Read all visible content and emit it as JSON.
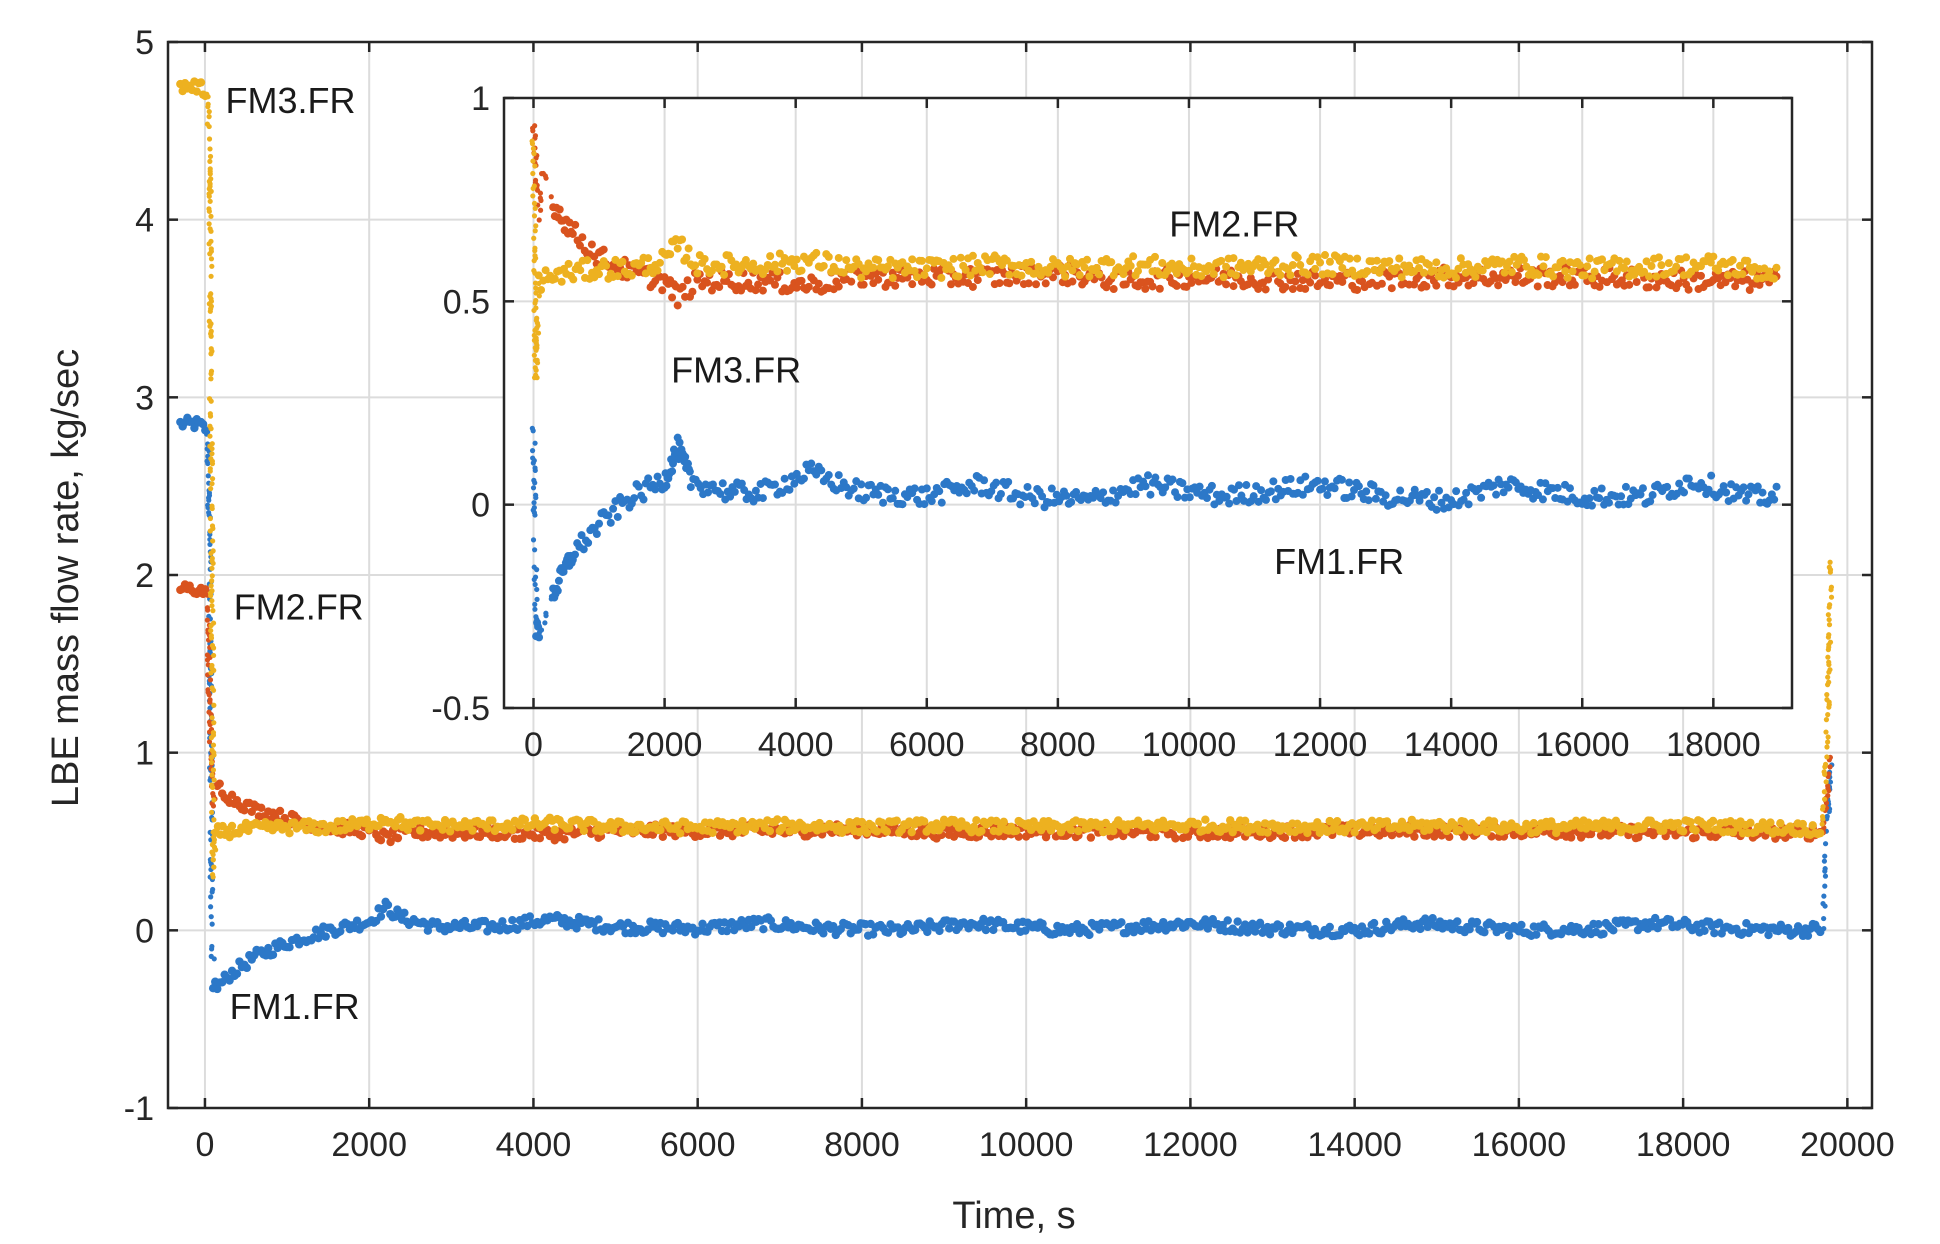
{
  "chart_data": [
    {
      "type": "scatter",
      "title": "",
      "xlabel": "Time, s",
      "ylabel": "LBE mass flow rate, kg/sec",
      "xlim": [
        -450,
        20300
      ],
      "ylim": [
        -1,
        5
      ],
      "xticks": [
        0,
        2000,
        4000,
        6000,
        8000,
        10000,
        12000,
        14000,
        16000,
        18000,
        20000
      ],
      "yticks": [
        -1,
        0,
        1,
        2,
        3,
        4,
        5
      ],
      "grid": true,
      "legend": "none (series labeled directly on plot)",
      "series": [
        {
          "name": "FM1.FR",
          "color": "#2c78c8",
          "points": [
            [
              -300,
              2.85
            ],
            [
              -100,
              2.85
            ],
            [
              30,
              2.82
            ],
            [
              60,
              2.2
            ],
            [
              80,
              0.3
            ],
            [
              100,
              -0.3
            ],
            [
              150,
              -0.32
            ],
            [
              300,
              -0.25
            ],
            [
              600,
              -0.15
            ],
            [
              1000,
              -0.07
            ],
            [
              1500,
              0.0
            ],
            [
              2000,
              0.05
            ],
            [
              2200,
              0.13
            ],
            [
              2400,
              0.07
            ],
            [
              2800,
              0.02
            ],
            [
              3500,
              0.02
            ],
            [
              4200,
              0.06
            ],
            [
              5000,
              0.02
            ],
            [
              6000,
              0.01
            ],
            [
              6800,
              0.04
            ],
            [
              7500,
              0.01
            ],
            [
              8500,
              0.0
            ],
            [
              9300,
              0.04
            ],
            [
              10500,
              0.0
            ],
            [
              12000,
              0.04
            ],
            [
              13000,
              0.01
            ],
            [
              14000,
              0.0
            ],
            [
              14800,
              0.04
            ],
            [
              16000,
              0.0
            ],
            [
              17000,
              0.01
            ],
            [
              17600,
              0.04
            ],
            [
              18500,
              0.01
            ],
            [
              19400,
              0.0
            ],
            [
              19700,
              0.01
            ],
            [
              19760,
              0.6
            ],
            [
              19800,
              1.0
            ]
          ]
        },
        {
          "name": "FM2.FR",
          "color": "#d9531e",
          "points": [
            [
              -300,
              1.92
            ],
            [
              -100,
              1.92
            ],
            [
              30,
              1.9
            ],
            [
              60,
              1.2
            ],
            [
              90,
              0.7
            ],
            [
              150,
              0.82
            ],
            [
              300,
              0.75
            ],
            [
              600,
              0.68
            ],
            [
              1000,
              0.63
            ],
            [
              1500,
              0.58
            ],
            [
              2000,
              0.56
            ],
            [
              2200,
              0.52
            ],
            [
              2500,
              0.55
            ],
            [
              3500,
              0.55
            ],
            [
              4200,
              0.54
            ],
            [
              5000,
              0.56
            ],
            [
              6000,
              0.56
            ],
            [
              7000,
              0.56
            ],
            [
              8000,
              0.57
            ],
            [
              9000,
              0.55
            ],
            [
              10000,
              0.56
            ],
            [
              12000,
              0.55
            ],
            [
              14000,
              0.56
            ],
            [
              16000,
              0.56
            ],
            [
              18000,
              0.55
            ],
            [
              19700,
              0.55
            ],
            [
              19760,
              0.8
            ],
            [
              19800,
              1.0
            ]
          ]
        },
        {
          "name": "FM3.FR",
          "color": "#edb120",
          "points": [
            [
              -300,
              4.75
            ],
            [
              -100,
              4.75
            ],
            [
              30,
              4.72
            ],
            [
              60,
              4.3
            ],
            [
              80,
              2.5
            ],
            [
              100,
              0.3
            ],
            [
              130,
              0.55
            ],
            [
              500,
              0.57
            ],
            [
              1000,
              0.58
            ],
            [
              1500,
              0.58
            ],
            [
              2000,
              0.6
            ],
            [
              2200,
              0.63
            ],
            [
              2500,
              0.59
            ],
            [
              3500,
              0.59
            ],
            [
              4200,
              0.6
            ],
            [
              5000,
              0.58
            ],
            [
              6000,
              0.58
            ],
            [
              7000,
              0.59
            ],
            [
              8000,
              0.58
            ],
            [
              9000,
              0.59
            ],
            [
              10000,
              0.58
            ],
            [
              12000,
              0.59
            ],
            [
              14000,
              0.58
            ],
            [
              15000,
              0.59
            ],
            [
              16000,
              0.58
            ],
            [
              18000,
              0.59
            ],
            [
              19700,
              0.57
            ],
            [
              19760,
              1.2
            ],
            [
              19800,
              2.1
            ]
          ]
        }
      ],
      "annotations": [
        {
          "text": "FM3.FR",
          "x": 250,
          "y": 4.6
        },
        {
          "text": "FM2.FR",
          "x": 350,
          "y": 1.75
        },
        {
          "text": "FM1.FR",
          "x": 300,
          "y": -0.5
        }
      ]
    },
    {
      "type": "scatter",
      "title": "",
      "xlabel": "",
      "ylabel": "",
      "xlim": [
        -450,
        19200
      ],
      "ylim": [
        -0.5,
        1
      ],
      "xticks": [
        0,
        2000,
        4000,
        6000,
        8000,
        10000,
        12000,
        14000,
        16000,
        18000
      ],
      "yticks": [
        -0.5,
        0,
        0.5,
        1
      ],
      "grid": true,
      "placement": "inset, upper right",
      "series": [
        {
          "name": "FM1.FR",
          "color": "#2c78c8",
          "points": [
            [
              0,
              0.2
            ],
            [
              40,
              -0.3
            ],
            [
              100,
              -0.32
            ],
            [
              300,
              -0.22
            ],
            [
              600,
              -0.12
            ],
            [
              1000,
              -0.05
            ],
            [
              1500,
              0.02
            ],
            [
              2000,
              0.06
            ],
            [
              2200,
              0.14
            ],
            [
              2400,
              0.06
            ],
            [
              3000,
              0.03
            ],
            [
              3500,
              0.03
            ],
            [
              4200,
              0.08
            ],
            [
              5000,
              0.03
            ],
            [
              6000,
              0.02
            ],
            [
              6800,
              0.05
            ],
            [
              7500,
              0.02
            ],
            [
              8500,
              0.01
            ],
            [
              9300,
              0.05
            ],
            [
              10500,
              0.02
            ],
            [
              12000,
              0.05
            ],
            [
              13000,
              0.02
            ],
            [
              14000,
              0.01
            ],
            [
              14800,
              0.05
            ],
            [
              16000,
              0.02
            ],
            [
              17000,
              0.02
            ],
            [
              17700,
              0.06
            ],
            [
              18500,
              0.02
            ],
            [
              19000,
              0.02
            ]
          ]
        },
        {
          "name": "FM2.FR",
          "color": "#d9531e",
          "points": [
            [
              0,
              0.95
            ],
            [
              80,
              0.7
            ],
            [
              150,
              0.82
            ],
            [
              300,
              0.74
            ],
            [
              600,
              0.67
            ],
            [
              1000,
              0.61
            ],
            [
              1500,
              0.57
            ],
            [
              2000,
              0.55
            ],
            [
              2200,
              0.51
            ],
            [
              2500,
              0.55
            ],
            [
              3500,
              0.55
            ],
            [
              4200,
              0.54
            ],
            [
              5000,
              0.56
            ],
            [
              6000,
              0.56
            ],
            [
              7000,
              0.56
            ],
            [
              8000,
              0.57
            ],
            [
              9000,
              0.55
            ],
            [
              10000,
              0.56
            ],
            [
              12000,
              0.55
            ],
            [
              14000,
              0.56
            ],
            [
              16000,
              0.56
            ],
            [
              18000,
              0.55
            ],
            [
              19000,
              0.55
            ]
          ]
        },
        {
          "name": "FM3.FR",
          "color": "#edb120",
          "points": [
            [
              0,
              0.9
            ],
            [
              40,
              0.3
            ],
            [
              80,
              0.55
            ],
            [
              500,
              0.57
            ],
            [
              1000,
              0.58
            ],
            [
              1500,
              0.58
            ],
            [
              2000,
              0.6
            ],
            [
              2200,
              0.64
            ],
            [
              2500,
              0.59
            ],
            [
              3500,
              0.59
            ],
            [
              4200,
              0.6
            ],
            [
              5000,
              0.58
            ],
            [
              6000,
              0.58
            ],
            [
              7000,
              0.59
            ],
            [
              8000,
              0.58
            ],
            [
              9000,
              0.59
            ],
            [
              10000,
              0.58
            ],
            [
              12000,
              0.59
            ],
            [
              14000,
              0.58
            ],
            [
              15000,
              0.59
            ],
            [
              16000,
              0.58
            ],
            [
              18000,
              0.59
            ],
            [
              19000,
              0.57
            ]
          ]
        }
      ],
      "annotations": [
        {
          "text": "FM2.FR",
          "x": 9700,
          "y": 0.66
        },
        {
          "text": "FM3.FR",
          "x": 2100,
          "y": 0.3
        },
        {
          "text": "FM1.FR",
          "x": 11300,
          "y": -0.17
        }
      ]
    }
  ]
}
